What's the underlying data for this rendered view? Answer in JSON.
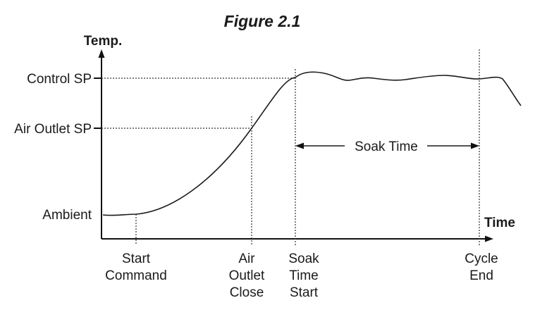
{
  "figure": {
    "title": "Figure 2.1",
    "y_axis_label": "Temp.",
    "x_axis_label": "Time",
    "levels": [
      "Control SP",
      "Air Outlet SP",
      "Ambient"
    ],
    "events": [
      [
        "Start",
        "Command"
      ],
      [
        "Air",
        "Outlet",
        "Close"
      ],
      [
        "Soak",
        "Time",
        "Start"
      ],
      [
        "Cycle",
        "End"
      ]
    ],
    "interval_label": "Soak Time"
  }
}
